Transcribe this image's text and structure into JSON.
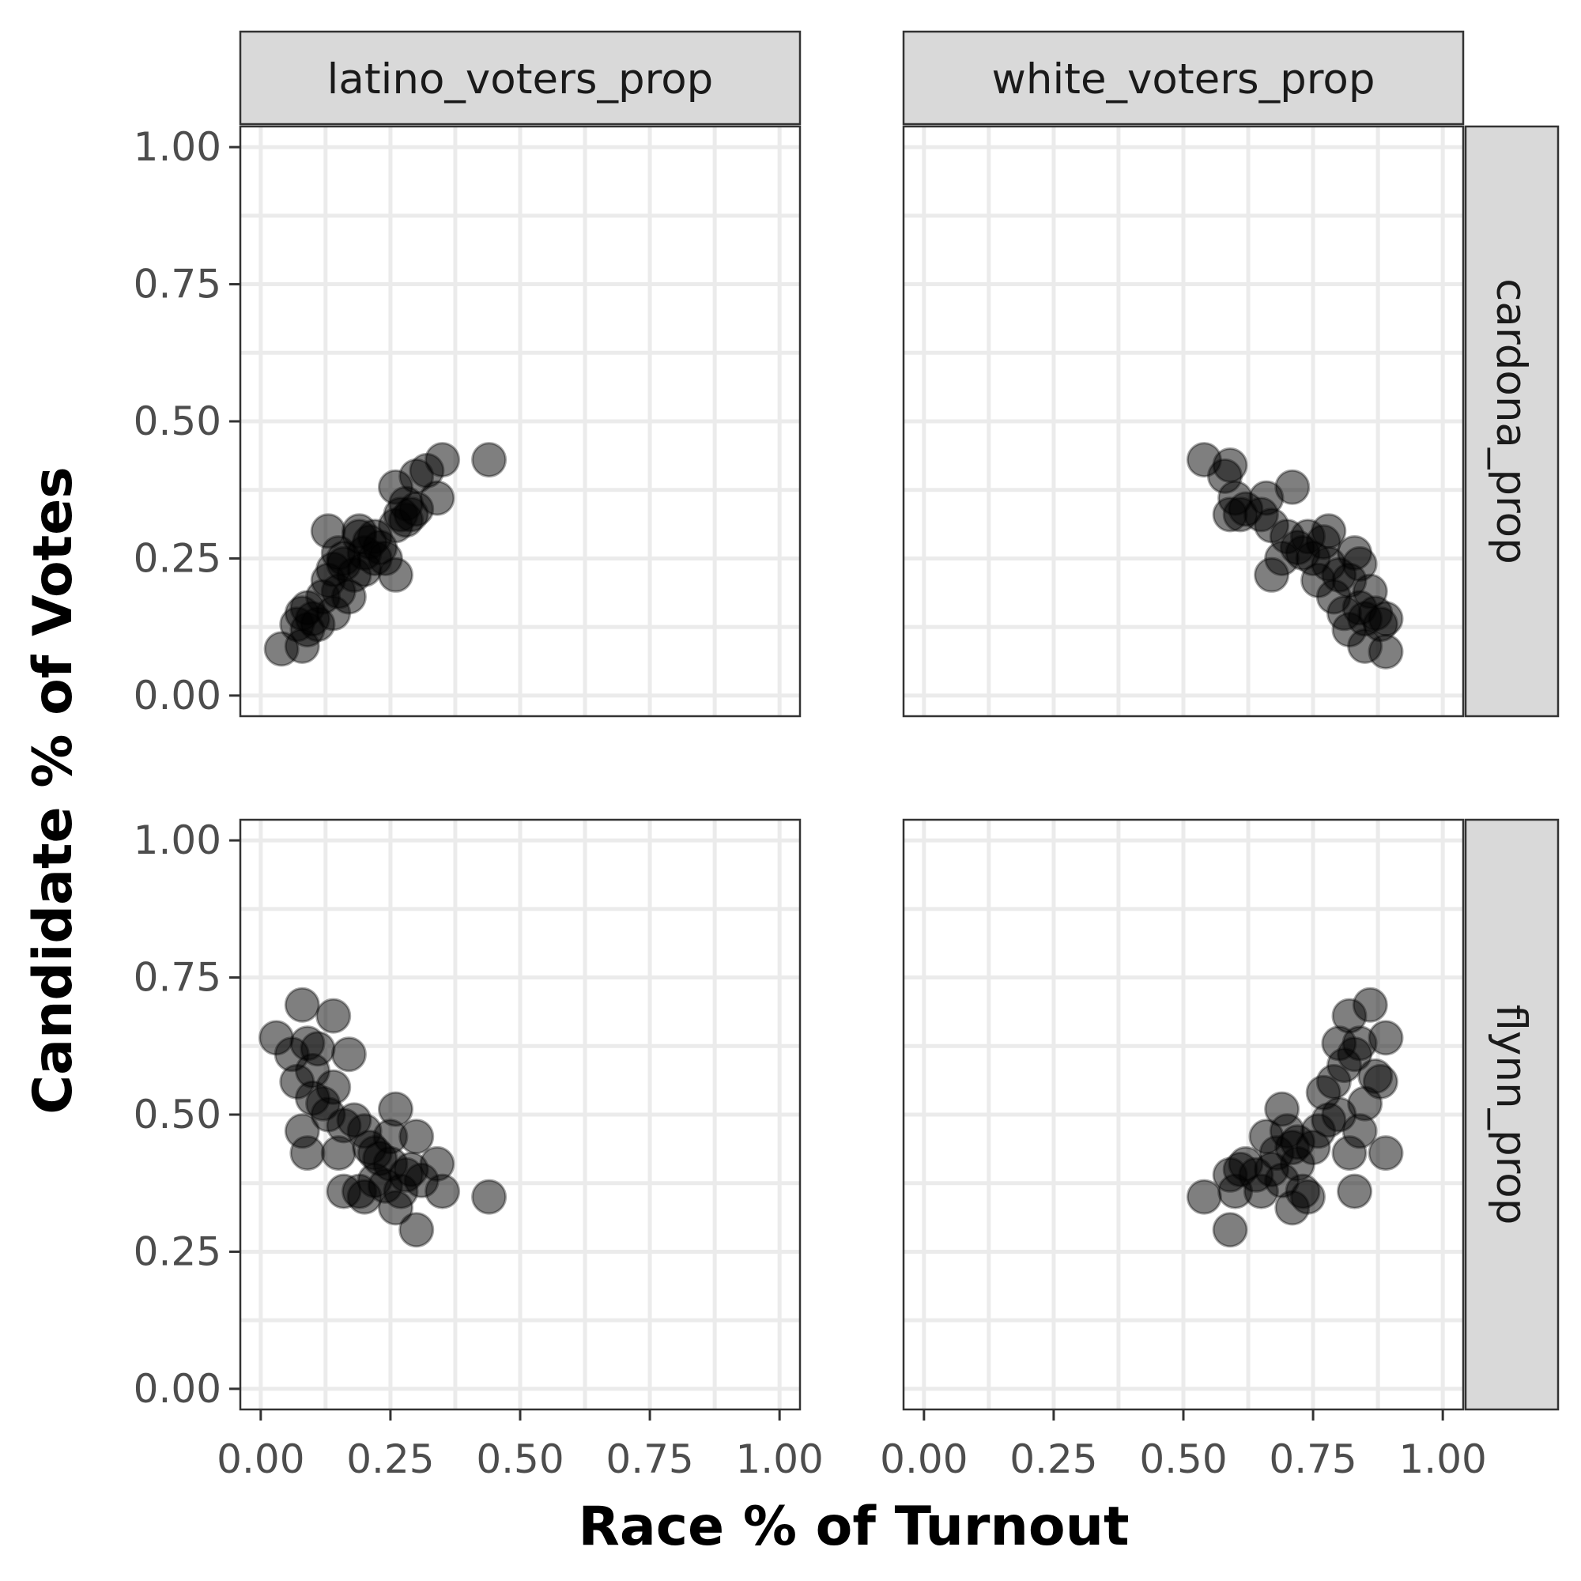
{
  "chart_data": {
    "type": "scatter",
    "xlabel": "Race % of Turnout",
    "ylabel": "Candidate % of Votes",
    "xlim": [
      0,
      1
    ],
    "ylim": [
      0,
      1
    ],
    "x_ticks": [
      "0.00",
      "0.25",
      "0.50",
      "0.75",
      "1.00"
    ],
    "y_ticks": [
      "0.00",
      "0.25",
      "0.50",
      "0.75",
      "1.00"
    ],
    "grid": true,
    "facet_columns": [
      "latino_voters_prop",
      "white_voters_prop"
    ],
    "facet_rows": [
      "cardona_prop",
      "flynn_prop"
    ],
    "panels": [
      {
        "column": "latino_voters_prop",
        "row": "cardona_prop",
        "points": [
          [
            0.04,
            0.085
          ],
          [
            0.08,
            0.09
          ],
          [
            0.07,
            0.13
          ],
          [
            0.08,
            0.15
          ],
          [
            0.09,
            0.12
          ],
          [
            0.1,
            0.14
          ],
          [
            0.09,
            0.16
          ],
          [
            0.11,
            0.13
          ],
          [
            0.12,
            0.18
          ],
          [
            0.13,
            0.21
          ],
          [
            0.14,
            0.15
          ],
          [
            0.15,
            0.19
          ],
          [
            0.16,
            0.25
          ],
          [
            0.17,
            0.18
          ],
          [
            0.13,
            0.3
          ],
          [
            0.14,
            0.23
          ],
          [
            0.15,
            0.26
          ],
          [
            0.16,
            0.24
          ],
          [
            0.18,
            0.22
          ],
          [
            0.19,
            0.29
          ],
          [
            0.19,
            0.3
          ],
          [
            0.2,
            0.26
          ],
          [
            0.21,
            0.28
          ],
          [
            0.22,
            0.25
          ],
          [
            0.22,
            0.29
          ],
          [
            0.23,
            0.27
          ],
          [
            0.24,
            0.25
          ],
          [
            0.2,
            0.23
          ],
          [
            0.26,
            0.22
          ],
          [
            0.26,
            0.31
          ],
          [
            0.26,
            0.38
          ],
          [
            0.27,
            0.33
          ],
          [
            0.28,
            0.35
          ],
          [
            0.28,
            0.32
          ],
          [
            0.29,
            0.33
          ],
          [
            0.3,
            0.34
          ],
          [
            0.3,
            0.4
          ],
          [
            0.32,
            0.41
          ],
          [
            0.34,
            0.36
          ],
          [
            0.35,
            0.43
          ],
          [
            0.44,
            0.43
          ]
        ]
      },
      {
        "column": "white_voters_prop",
        "row": "cardona_prop",
        "points": [
          [
            0.54,
            0.43
          ],
          [
            0.58,
            0.4
          ],
          [
            0.59,
            0.42
          ],
          [
            0.6,
            0.36
          ],
          [
            0.59,
            0.33
          ],
          [
            0.61,
            0.33
          ],
          [
            0.62,
            0.34
          ],
          [
            0.65,
            0.33
          ],
          [
            0.66,
            0.36
          ],
          [
            0.67,
            0.31
          ],
          [
            0.67,
            0.22
          ],
          [
            0.69,
            0.25
          ],
          [
            0.7,
            0.29
          ],
          [
            0.71,
            0.38
          ],
          [
            0.72,
            0.27
          ],
          [
            0.73,
            0.26
          ],
          [
            0.74,
            0.29
          ],
          [
            0.75,
            0.25
          ],
          [
            0.76,
            0.21
          ],
          [
            0.77,
            0.28
          ],
          [
            0.78,
            0.3
          ],
          [
            0.78,
            0.24
          ],
          [
            0.79,
            0.18
          ],
          [
            0.8,
            0.22
          ],
          [
            0.81,
            0.15
          ],
          [
            0.82,
            0.21
          ],
          [
            0.82,
            0.12
          ],
          [
            0.83,
            0.26
          ],
          [
            0.84,
            0.16
          ],
          [
            0.84,
            0.24
          ],
          [
            0.85,
            0.14
          ],
          [
            0.85,
            0.09
          ],
          [
            0.86,
            0.19
          ],
          [
            0.87,
            0.15
          ],
          [
            0.88,
            0.13
          ],
          [
            0.89,
            0.14
          ],
          [
            0.89,
            0.08
          ]
        ]
      },
      {
        "column": "latino_voters_prop",
        "row": "flynn_prop",
        "points": [
          [
            0.03,
            0.64
          ],
          [
            0.06,
            0.61
          ],
          [
            0.08,
            0.7
          ],
          [
            0.07,
            0.56
          ],
          [
            0.08,
            0.47
          ],
          [
            0.09,
            0.43
          ],
          [
            0.09,
            0.63
          ],
          [
            0.1,
            0.58
          ],
          [
            0.1,
            0.53
          ],
          [
            0.11,
            0.62
          ],
          [
            0.12,
            0.52
          ],
          [
            0.13,
            0.5
          ],
          [
            0.14,
            0.68
          ],
          [
            0.14,
            0.55
          ],
          [
            0.15,
            0.43
          ],
          [
            0.16,
            0.48
          ],
          [
            0.16,
            0.36
          ],
          [
            0.17,
            0.61
          ],
          [
            0.18,
            0.49
          ],
          [
            0.19,
            0.36
          ],
          [
            0.2,
            0.35
          ],
          [
            0.2,
            0.47
          ],
          [
            0.21,
            0.44
          ],
          [
            0.22,
            0.43
          ],
          [
            0.22,
            0.38
          ],
          [
            0.23,
            0.42
          ],
          [
            0.24,
            0.37
          ],
          [
            0.25,
            0.46
          ],
          [
            0.25,
            0.41
          ],
          [
            0.26,
            0.51
          ],
          [
            0.26,
            0.33
          ],
          [
            0.27,
            0.36
          ],
          [
            0.28,
            0.39
          ],
          [
            0.29,
            0.4
          ],
          [
            0.3,
            0.46
          ],
          [
            0.3,
            0.29
          ],
          [
            0.31,
            0.38
          ],
          [
            0.34,
            0.41
          ],
          [
            0.35,
            0.36
          ],
          [
            0.44,
            0.35
          ]
        ]
      },
      {
        "column": "white_voters_prop",
        "row": "flynn_prop",
        "points": [
          [
            0.54,
            0.35
          ],
          [
            0.59,
            0.29
          ],
          [
            0.59,
            0.39
          ],
          [
            0.6,
            0.36
          ],
          [
            0.61,
            0.4
          ],
          [
            0.62,
            0.41
          ],
          [
            0.64,
            0.39
          ],
          [
            0.65,
            0.36
          ],
          [
            0.66,
            0.46
          ],
          [
            0.67,
            0.4
          ],
          [
            0.68,
            0.43
          ],
          [
            0.69,
            0.51
          ],
          [
            0.69,
            0.38
          ],
          [
            0.7,
            0.47
          ],
          [
            0.71,
            0.33
          ],
          [
            0.71,
            0.44
          ],
          [
            0.72,
            0.41
          ],
          [
            0.72,
            0.45
          ],
          [
            0.73,
            0.36
          ],
          [
            0.74,
            0.35
          ],
          [
            0.75,
            0.44
          ],
          [
            0.76,
            0.47
          ],
          [
            0.77,
            0.54
          ],
          [
            0.78,
            0.49
          ],
          [
            0.79,
            0.56
          ],
          [
            0.8,
            0.63
          ],
          [
            0.8,
            0.5
          ],
          [
            0.81,
            0.59
          ],
          [
            0.82,
            0.43
          ],
          [
            0.82,
            0.68
          ],
          [
            0.83,
            0.61
          ],
          [
            0.83,
            0.36
          ],
          [
            0.84,
            0.63
          ],
          [
            0.84,
            0.47
          ],
          [
            0.85,
            0.52
          ],
          [
            0.86,
            0.7
          ],
          [
            0.87,
            0.57
          ],
          [
            0.88,
            0.56
          ],
          [
            0.89,
            0.43
          ],
          [
            0.89,
            0.64
          ]
        ]
      }
    ]
  }
}
